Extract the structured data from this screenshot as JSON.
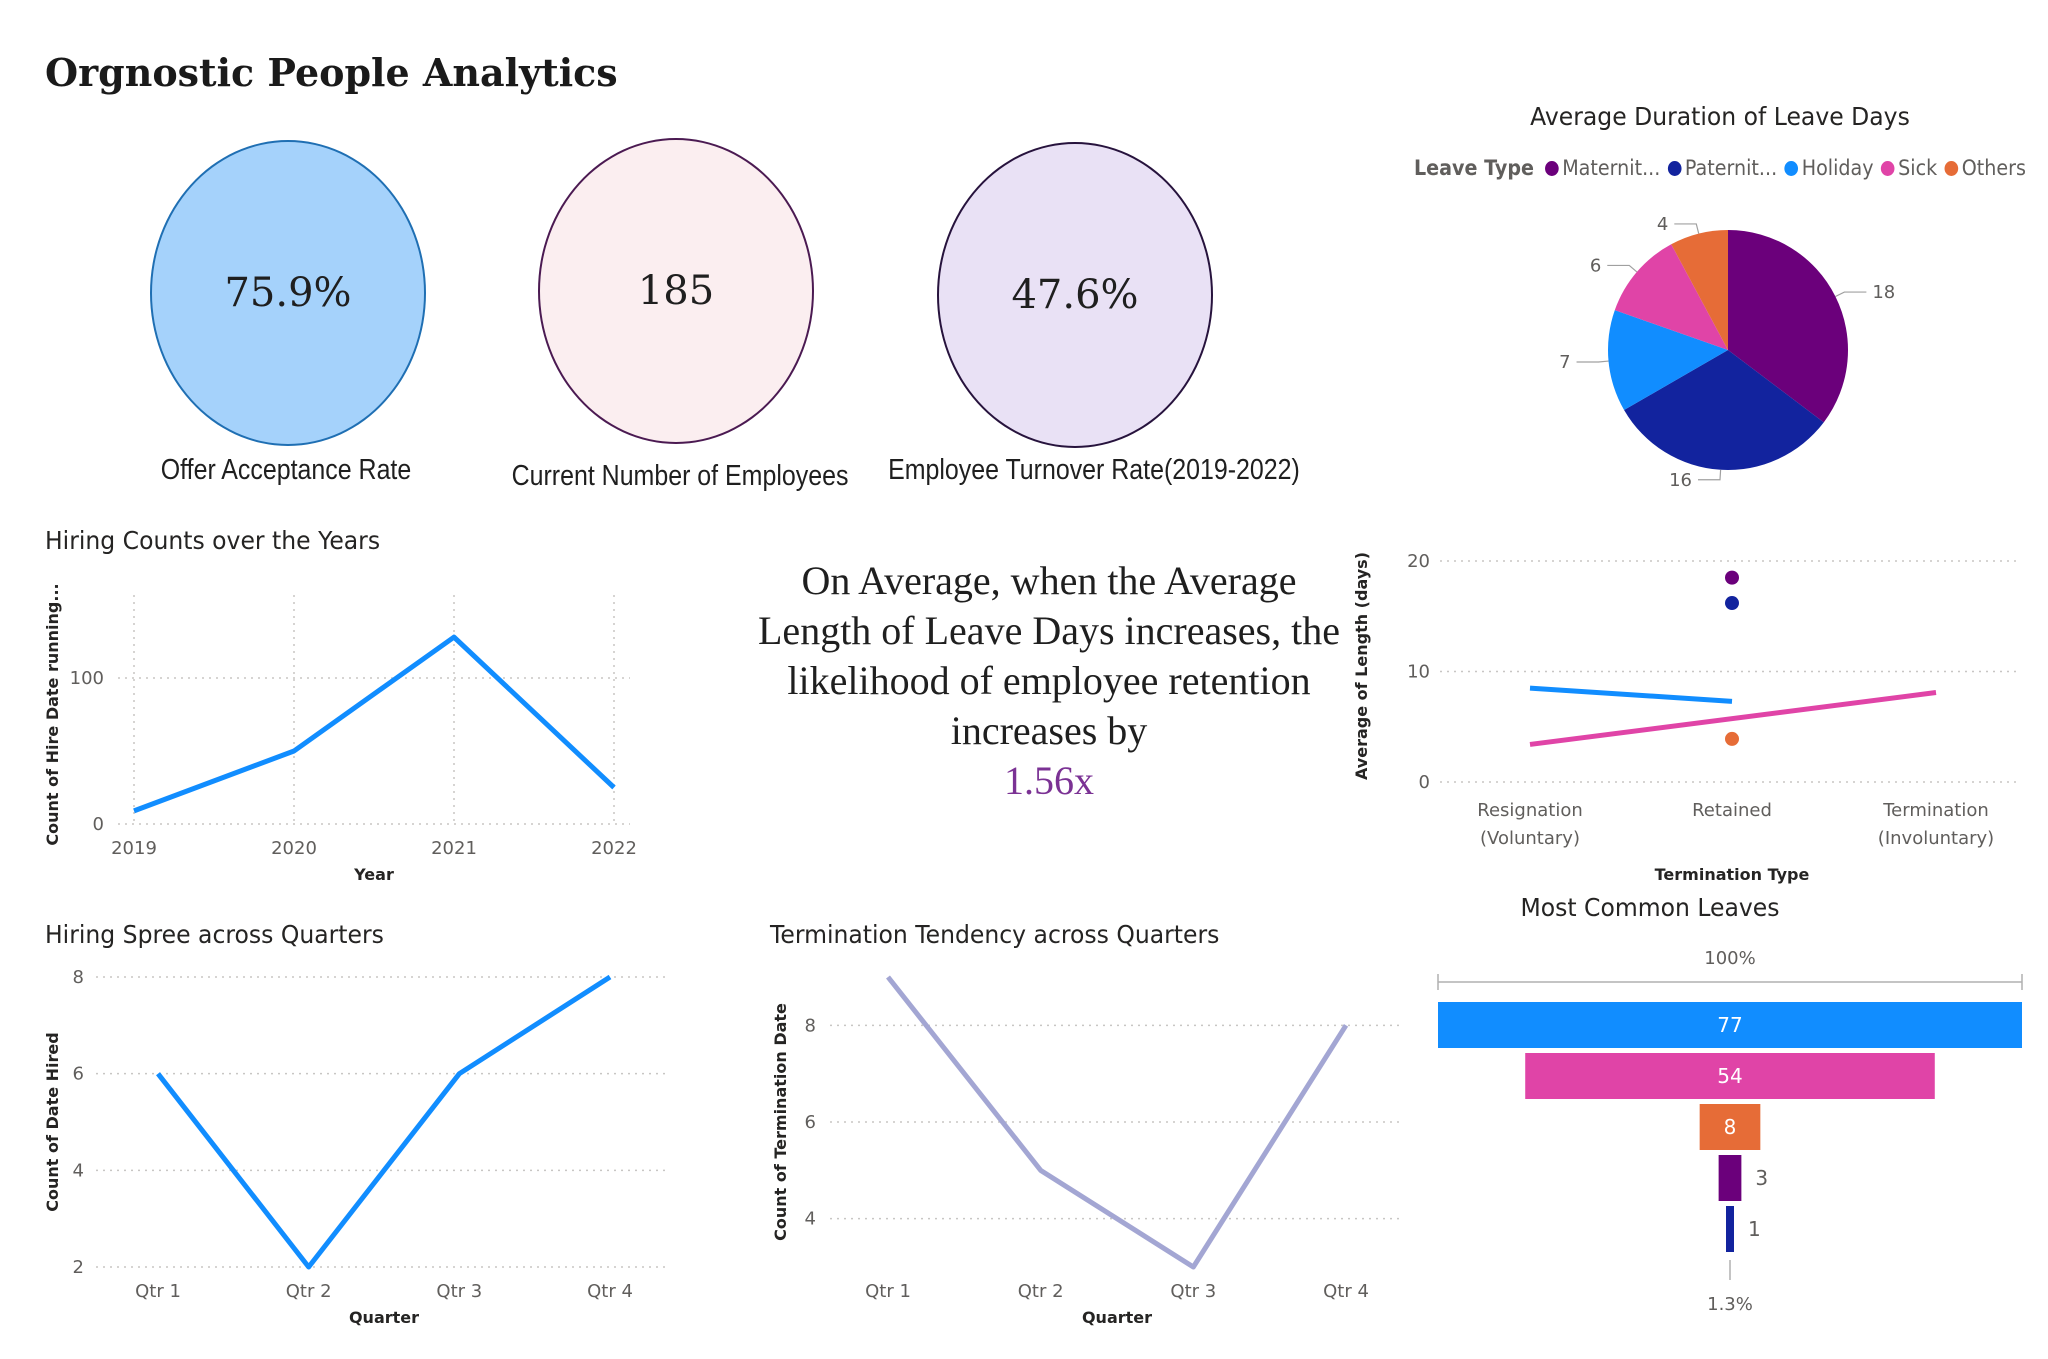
{
  "dashboard": {
    "title": "Orgnostic People Analytics"
  },
  "kpis": [
    {
      "value": "75.9%",
      "label": "Offer Acceptance Rate",
      "fill": "#a5d2fb",
      "stroke": "#1f6fb3"
    },
    {
      "value": "185",
      "label": "Current Number of Employees",
      "fill": "#fbeef0",
      "stroke": "#4b1a52"
    },
    {
      "value": "47.6%",
      "label": "Employee Turnover Rate(2019-2022)",
      "fill": "#e9e1f5",
      "stroke": "#27133d"
    }
  ],
  "insight": {
    "text": "On Average, when the Average Length of Leave Days increases, the likelihood of employee retention increases by",
    "multiplier": "1.56x"
  },
  "colors": {
    "line_blue": "#118dff",
    "line_lavender": "#a3a6d3",
    "maternity": "#6b007b",
    "paternity": "#12239e",
    "holiday": "#118dff",
    "sick": "#e044a7",
    "others": "#e66c37",
    "grid": "#c8c6c4"
  },
  "chart_data": [
    {
      "type": "line",
      "title": "Hiring Counts over the Years",
      "xlabel": "Year",
      "ylabel": "Count of Hire Date running...",
      "categories": [
        "2019",
        "2020",
        "2021",
        "2022"
      ],
      "series": [
        {
          "values": [
            9,
            50,
            128,
            25
          ]
        }
      ],
      "ylim": [
        0,
        150
      ],
      "yticks": [
        0,
        100
      ],
      "grid": true
    },
    {
      "type": "line",
      "title": "Hiring Spree across Quarters",
      "xlabel": "Quarter",
      "ylabel": "Count of Date Hired",
      "categories": [
        "Qtr 1",
        "Qtr 2",
        "Qtr 3",
        "Qtr 4"
      ],
      "series": [
        {
          "values": [
            6,
            2,
            6,
            8
          ]
        }
      ],
      "ylim": [
        2,
        8
      ],
      "yticks": [
        2,
        4,
        6,
        8
      ],
      "grid": true
    },
    {
      "type": "line",
      "title": "Termination Tendency across Quarters",
      "xlabel": "Quarter",
      "ylabel": "Count of Termination Date",
      "categories": [
        "Qtr 1",
        "Qtr 2",
        "Qtr 3",
        "Qtr 4"
      ],
      "series": [
        {
          "values": [
            9,
            5,
            3,
            8
          ]
        }
      ],
      "ylim": [
        3,
        9
      ],
      "yticks": [
        4,
        6,
        8
      ],
      "grid": true
    },
    {
      "type": "pie",
      "title": "Average Duration of Leave Days",
      "legend_title": "Leave Type",
      "legend_placement": "top",
      "legend": [
        "Maternit...",
        "Paternit...",
        "Holiday",
        "Sick",
        "Others"
      ],
      "slices": [
        {
          "name": "Maternity",
          "value": 18
        },
        {
          "name": "Paternity",
          "value": 16
        },
        {
          "name": "Holiday",
          "value": 7
        },
        {
          "name": "Sick",
          "value": 6
        },
        {
          "name": "Others",
          "value": 4
        }
      ]
    },
    {
      "type": "scatter",
      "title": "",
      "xlabel": "Termination Type",
      "ylabel": "Average of Length (days)",
      "categories": [
        "Resignation (Voluntary)",
        "Retained",
        "Termination (Involuntary)"
      ],
      "yticks": [
        0,
        10,
        20
      ],
      "ylim": [
        0,
        21
      ],
      "points": [
        {
          "category": "Retained",
          "y": 18.5,
          "series": "Maternity"
        },
        {
          "category": "Retained",
          "y": 16.2,
          "series": "Paternity"
        },
        {
          "category": "Retained",
          "y": 3.9,
          "series": "Others"
        }
      ],
      "trend_lines": [
        {
          "series": "Holiday",
          "from": {
            "category": "Resignation (Voluntary)",
            "y": 8.5
          },
          "to": {
            "category": "Retained",
            "y": 7.3
          }
        },
        {
          "series": "Sick",
          "from": {
            "category": "Resignation (Voluntary)",
            "y": 3.4
          },
          "to": {
            "category": "Termination (Involuntary)",
            "y": 8.1
          }
        }
      ],
      "grid": true
    },
    {
      "type": "bar",
      "title": "Most Common Leaves",
      "subtype": "funnel",
      "top_label": "100%",
      "bottom_label": "1.3%",
      "stages": [
        {
          "series": "Holiday",
          "value": 77
        },
        {
          "series": "Sick",
          "value": 54
        },
        {
          "series": "Others",
          "value": 8
        },
        {
          "series": "Maternity",
          "value": 3
        },
        {
          "series": "Paternity",
          "value": 1
        }
      ]
    }
  ]
}
